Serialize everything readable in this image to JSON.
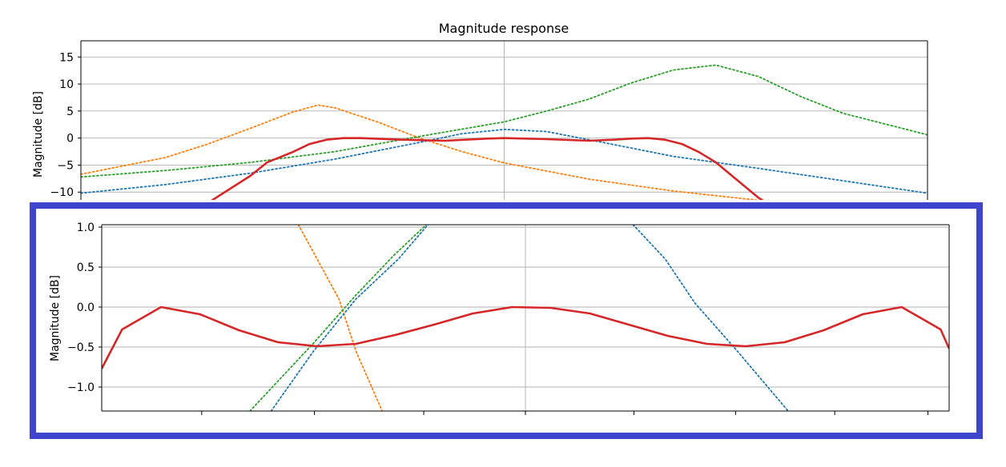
{
  "colors": {
    "blue": "#1f77b4",
    "orange": "#ff7f0e",
    "green": "#2ca02c",
    "red": "#d62728",
    "grid": "#b0b0b0",
    "highlight_frame": "#3f44cc"
  },
  "chart_data": [
    {
      "type": "line",
      "title": "Magnitude response",
      "ylabel": "Magnitude [dB]",
      "xlabel": "",
      "xlim": [
        0,
        1
      ],
      "ylim": [
        -11,
        18
      ],
      "yticks": [
        15,
        10,
        5,
        0,
        -5,
        -10
      ],
      "ytick_labels": [
        "15",
        "10",
        "5",
        "0",
        "−5",
        "−10"
      ],
      "xgrid": [
        0.5
      ],
      "grid": true,
      "series": [
        {
          "color": "blue",
          "style": "dotted",
          "x": [
            0,
            0.1,
            0.2,
            0.3,
            0.4,
            0.45,
            0.5,
            0.55,
            0.6,
            0.7,
            0.8,
            0.9,
            1.0
          ],
          "y": [
            -10.2,
            -8.6,
            -6.5,
            -3.9,
            -0.8,
            0.8,
            1.6,
            1.2,
            -0.3,
            -3.4,
            -5.6,
            -7.9,
            -10.2
          ]
        },
        {
          "color": "orange",
          "style": "dotted",
          "x": [
            0,
            0.1,
            0.15,
            0.2,
            0.25,
            0.28,
            0.3,
            0.35,
            0.4,
            0.45,
            0.5,
            0.6,
            0.7,
            0.8,
            0.9,
            1.0
          ],
          "y": [
            -6.7,
            -3.6,
            -1.1,
            1.8,
            4.8,
            6.1,
            5.6,
            3.0,
            0.0,
            -2.5,
            -4.6,
            -7.6,
            -9.8,
            -11.5,
            -13,
            -14.5
          ]
        },
        {
          "color": "green",
          "style": "dotted",
          "x": [
            0,
            0.1,
            0.2,
            0.3,
            0.4,
            0.5,
            0.55,
            0.6,
            0.65,
            0.7,
            0.75,
            0.8,
            0.85,
            0.9,
            1.0
          ],
          "y": [
            -7.2,
            -6.0,
            -4.5,
            -2.5,
            0.3,
            3.0,
            5.0,
            7.2,
            10.2,
            12.6,
            13.5,
            11.4,
            7.7,
            4.6,
            0.6
          ]
        },
        {
          "color": "red",
          "style": "solid",
          "x": [
            0.15,
            0.2,
            0.22,
            0.25,
            0.27,
            0.29,
            0.31,
            0.33,
            0.38,
            0.43,
            0.48,
            0.5,
            0.55,
            0.6,
            0.63,
            0.65,
            0.67,
            0.69,
            0.71,
            0.73,
            0.75,
            0.8,
            0.85
          ],
          "y": [
            -12,
            -7,
            -4.5,
            -2.6,
            -1.1,
            -0.3,
            0,
            0,
            -0.3,
            -0.5,
            -0.1,
            0,
            -0.2,
            -0.5,
            -0.3,
            -0.1,
            0,
            -0.3,
            -1.1,
            -2.6,
            -4.5,
            -11,
            -16
          ]
        }
      ]
    },
    {
      "type": "line",
      "title": "",
      "ylabel": "Magnitude [dB]",
      "xlabel": "",
      "xlim": [
        0,
        1
      ],
      "ylim": [
        -1.3,
        1.03
      ],
      "yticks": [
        1.0,
        0.5,
        0.0,
        -0.5,
        -1.0
      ],
      "ytick_labels": [
        "1.0",
        "0.5",
        "0.0",
        "−0.5",
        "−1.0"
      ],
      "xgrid": [
        0.5
      ],
      "xticks": [
        0.118,
        0.251,
        0.38,
        0.5,
        0.628,
        0.748,
        0.865,
        0.975
      ],
      "grid": true,
      "series": [
        {
          "color": "orange",
          "style": "dotted",
          "x": [
            0.232,
            0.28,
            0.3,
            0.331
          ],
          "y": [
            1.03,
            0.1,
            -0.55,
            -1.3
          ]
        },
        {
          "color": "green",
          "style": "dotted",
          "x": [
            0.175,
            0.25,
            0.3,
            0.345,
            0.383
          ],
          "y": [
            -1.3,
            -0.45,
            0.15,
            0.65,
            1.03
          ]
        },
        {
          "color": "blue",
          "style": "dotted",
          "x": [
            0.2,
            0.25,
            0.3,
            0.35,
            0.385
          ],
          "y": [
            -1.3,
            -0.55,
            0.1,
            0.6,
            1.03
          ]
        },
        {
          "color": "blue",
          "style": "dotted",
          "x": [
            0.627,
            0.665,
            0.7,
            0.75,
            0.81
          ],
          "y": [
            1.03,
            0.6,
            0.05,
            -0.55,
            -1.3
          ]
        },
        {
          "color": "red",
          "style": "solid",
          "x": [
            0,
            0.024,
            0.07,
            0.116,
            0.162,
            0.208,
            0.254,
            0.3,
            0.346,
            0.392,
            0.438,
            0.484,
            0.53,
            0.576,
            0.622,
            0.668,
            0.714,
            0.76,
            0.806,
            0.852,
            0.898,
            0.944,
            0.99,
            1.0
          ],
          "y": [
            -0.77,
            -0.28,
            0.0,
            -0.09,
            -0.29,
            -0.44,
            -0.49,
            -0.46,
            -0.35,
            -0.22,
            -0.08,
            0.0,
            -0.01,
            -0.08,
            -0.22,
            -0.36,
            -0.46,
            -0.49,
            -0.44,
            -0.29,
            -0.09,
            0.0,
            -0.28,
            -0.52
          ]
        }
      ]
    }
  ]
}
